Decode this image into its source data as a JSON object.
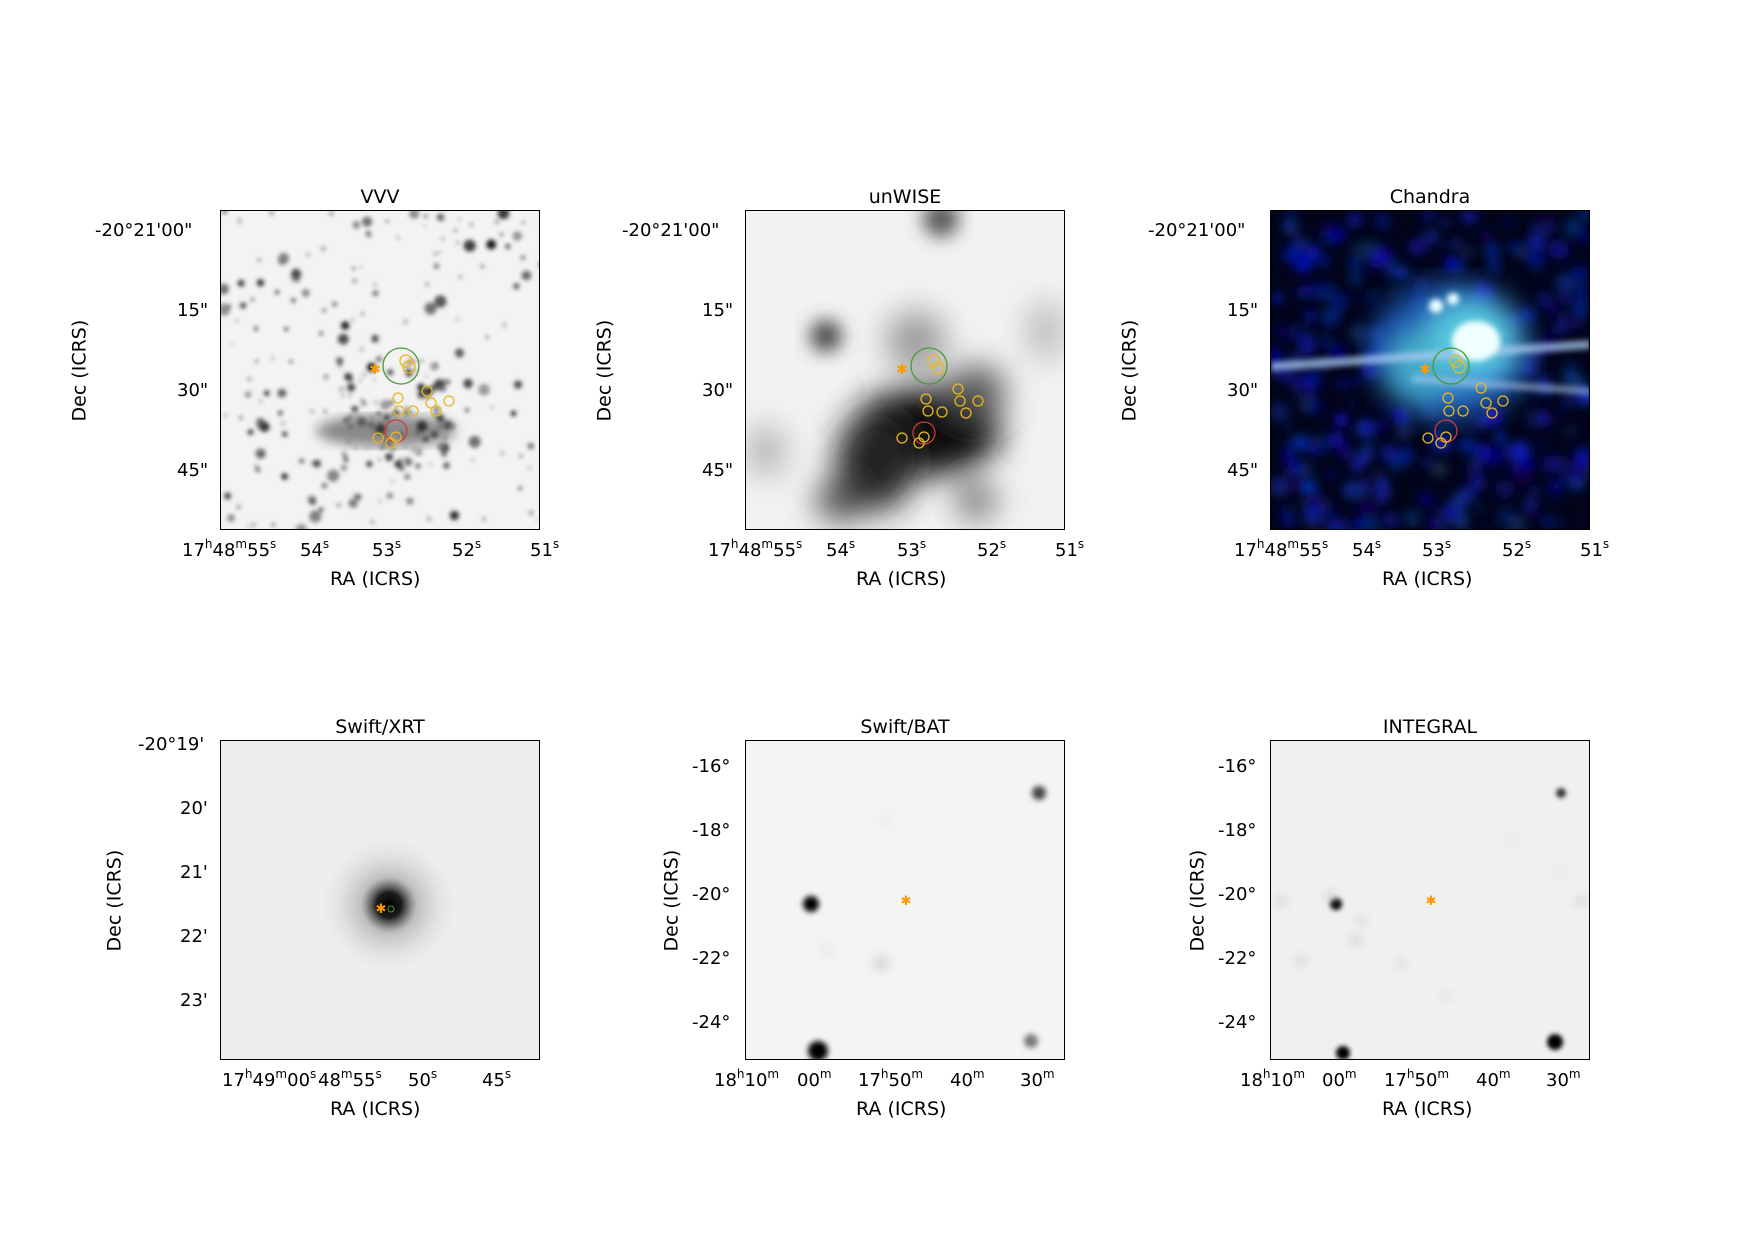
{
  "panels": [
    {
      "id": "vvv",
      "title": "VVV",
      "xlabel": "RA (ICRS)",
      "ylabel": "Dec (ICRS)",
      "yticks": [
        "-20°21'00\"",
        "15\"",
        "30\"",
        "45\""
      ],
      "xticks": [
        [
          "17",
          "h",
          "48",
          "m",
          "55",
          "s"
        ],
        [
          "54",
          "s"
        ],
        [
          "53",
          "s"
        ],
        [
          "52",
          "s"
        ],
        [
          "51",
          "s"
        ]
      ]
    },
    {
      "id": "unwise",
      "title": "unWISE",
      "xlabel": "RA (ICRS)",
      "ylabel": "Dec (ICRS)",
      "yticks": [
        "-20°21'00\"",
        "15\"",
        "30\"",
        "45\""
      ],
      "xticks": [
        [
          "17",
          "h",
          "48",
          "m",
          "55",
          "s"
        ],
        [
          "54",
          "s"
        ],
        [
          "53",
          "s"
        ],
        [
          "52",
          "s"
        ],
        [
          "51",
          "s"
        ]
      ]
    },
    {
      "id": "chandra",
      "title": "Chandra",
      "xlabel": "RA (ICRS)",
      "ylabel": "Dec (ICRS)",
      "yticks": [
        "-20°21'00\"",
        "15\"",
        "30\"",
        "45\""
      ],
      "xticks": [
        [
          "17",
          "h",
          "48",
          "m",
          "55",
          "s"
        ],
        [
          "54",
          "s"
        ],
        [
          "53",
          "s"
        ],
        [
          "52",
          "s"
        ],
        [
          "51",
          "s"
        ]
      ]
    },
    {
      "id": "swift-xrt",
      "title": "Swift/XRT",
      "xlabel": "RA (ICRS)",
      "ylabel": "Dec (ICRS)",
      "yticks": [
        "-20°19'",
        "20'",
        "21'",
        "22'",
        "23'"
      ],
      "xticks": [
        [
          "17",
          "h",
          "49",
          "m",
          "00",
          "s"
        ],
        [
          "48",
          "m",
          "55",
          "s"
        ],
        [
          "50",
          "s"
        ],
        [
          "45",
          "s"
        ]
      ]
    },
    {
      "id": "swift-bat",
      "title": "Swift/BAT",
      "xlabel": "RA (ICRS)",
      "ylabel": "Dec (ICRS)",
      "yticks": [
        "-16°",
        "-18°",
        "-20°",
        "-22°",
        "-24°"
      ],
      "xticks": [
        [
          "18",
          "h",
          "10",
          "m"
        ],
        [
          "00",
          "m"
        ],
        [
          "17",
          "h",
          "50",
          "m"
        ],
        [
          "40",
          "m"
        ],
        [
          "30",
          "m"
        ]
      ]
    },
    {
      "id": "integral",
      "title": "INTEGRAL",
      "xlabel": "RA (ICRS)",
      "ylabel": "Dec (ICRS)",
      "yticks": [
        "-16°",
        "-18°",
        "-20°",
        "-22°",
        "-24°"
      ],
      "xticks": [
        [
          "18",
          "h",
          "10",
          "m"
        ],
        [
          "00",
          "m"
        ],
        [
          "17",
          "h",
          "50",
          "m"
        ],
        [
          "40",
          "m"
        ],
        [
          "30",
          "m"
        ]
      ]
    }
  ],
  "colors": {
    "target_marker": "#ff9900",
    "green_circle": "#4a9a3a",
    "red_circle": "#d23a3a",
    "yellow_circles": "#e8b820"
  }
}
